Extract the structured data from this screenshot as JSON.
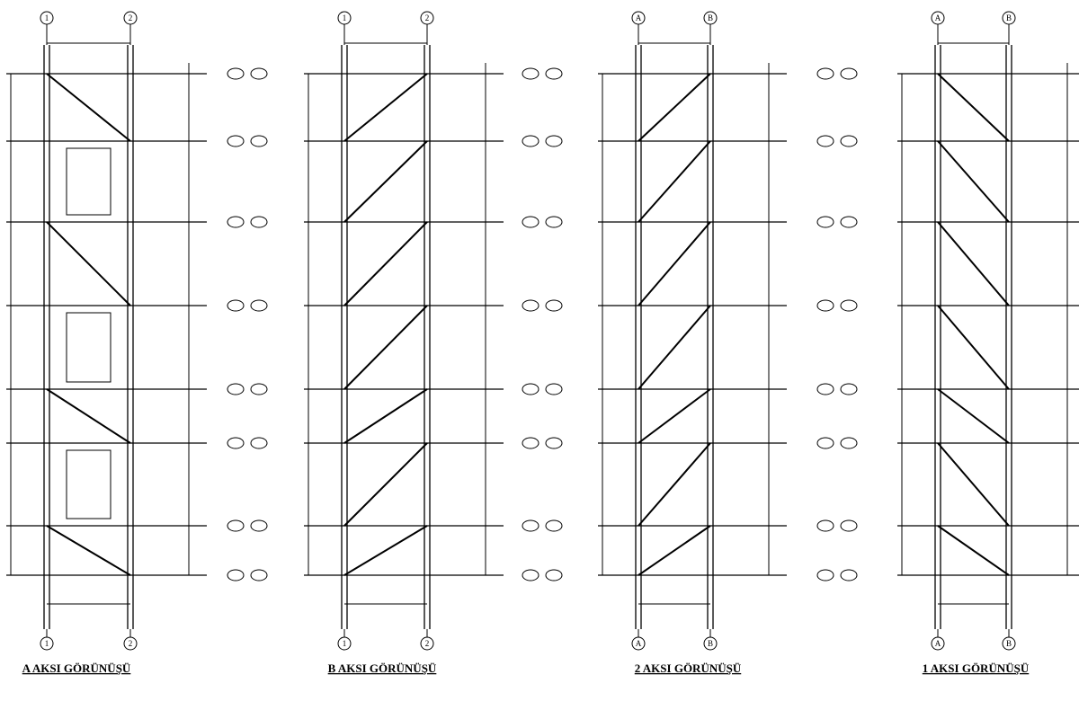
{
  "views": [
    {
      "title": "A AKSI GÖRÜNÜŞÜ",
      "axes": [
        "1",
        "2"
      ]
    },
    {
      "title": "B AKSI GÖRÜNÜŞÜ",
      "axes": [
        "1",
        "2"
      ]
    },
    {
      "title": "2 AKSI GÖRÜNÜŞÜ",
      "axes": [
        "A",
        "B"
      ]
    },
    {
      "title": "1 AKSI GÖRÜNÜŞÜ",
      "axes": [
        "A",
        "B"
      ]
    }
  ]
}
